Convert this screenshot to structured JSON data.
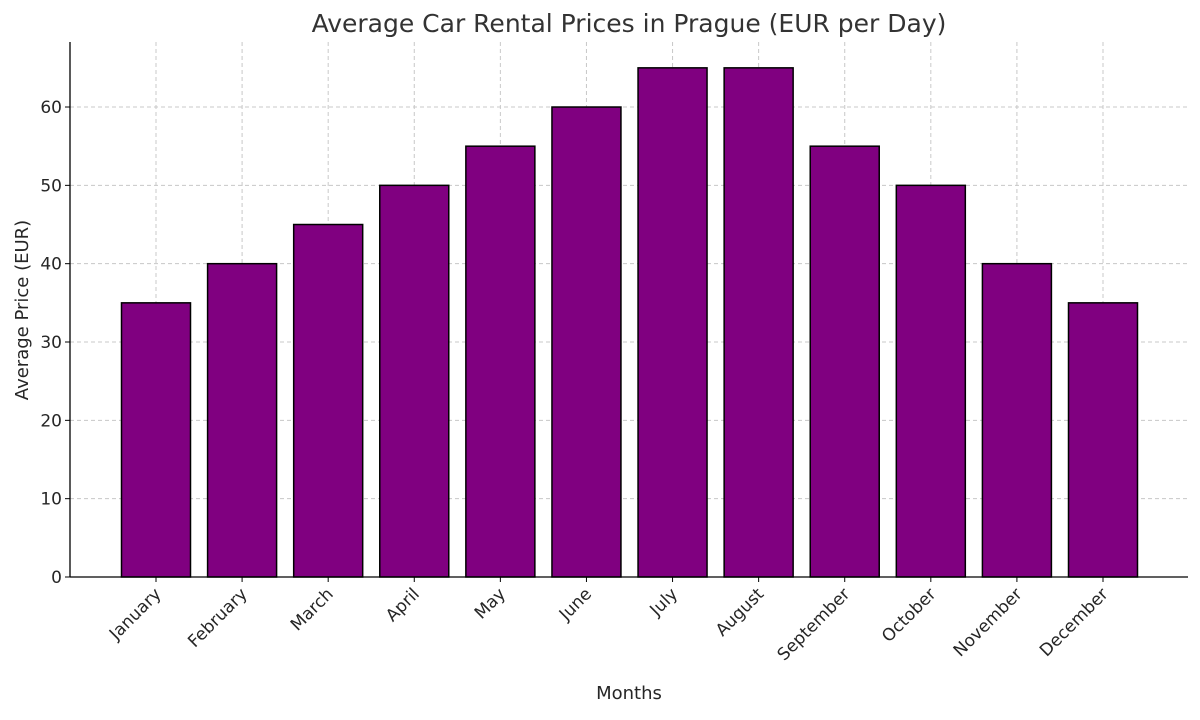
{
  "chart_data": {
    "type": "bar",
    "title": "Average Car Rental Prices in Prague (EUR per Day)",
    "xlabel": "Months",
    "ylabel": "Average Price (EUR)",
    "categories": [
      "January",
      "February",
      "March",
      "April",
      "May",
      "June",
      "July",
      "August",
      "September",
      "October",
      "November",
      "December"
    ],
    "values": [
      35,
      40,
      45,
      50,
      55,
      60,
      65,
      65,
      55,
      50,
      40,
      35
    ],
    "ylim": [
      0,
      68.3
    ],
    "yticks": [
      0,
      10,
      20,
      30,
      40,
      50,
      60
    ],
    "grid": true,
    "bar_color": "#800080",
    "edge_color": "#000000"
  }
}
